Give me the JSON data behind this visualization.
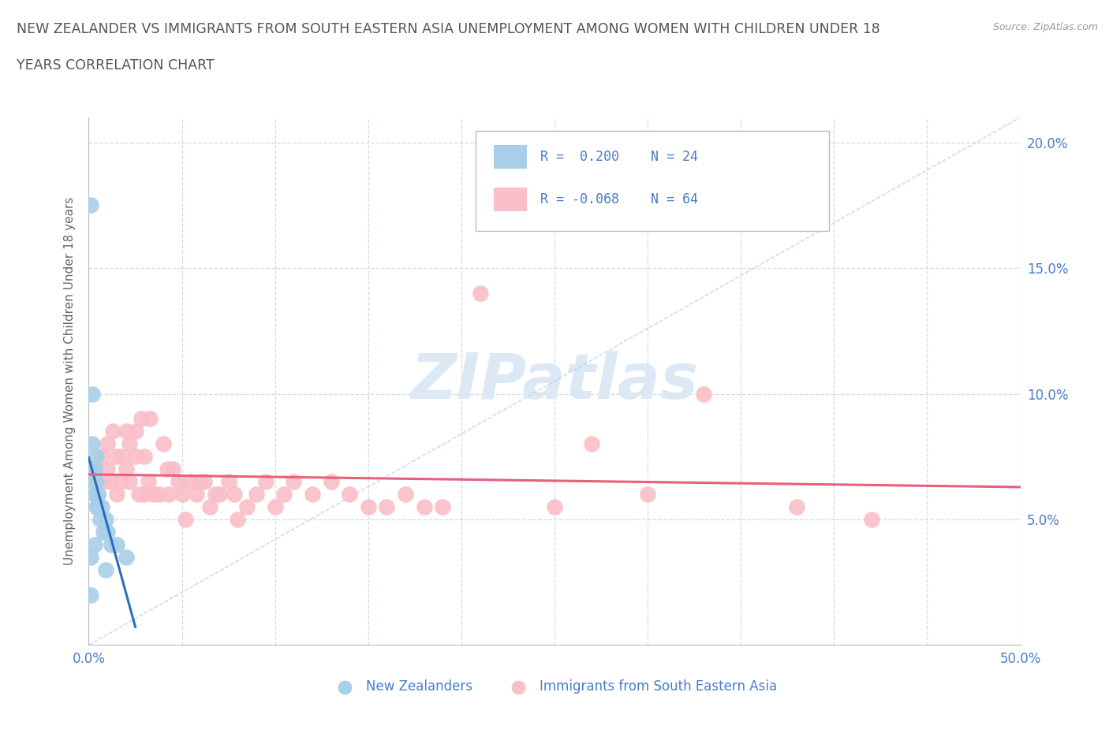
{
  "title_line1": "NEW ZEALANDER VS IMMIGRANTS FROM SOUTH EASTERN ASIA UNEMPLOYMENT AMONG WOMEN WITH CHILDREN UNDER 18",
  "title_line2": "YEARS CORRELATION CHART",
  "source": "Source: ZipAtlas.com",
  "ylabel": "Unemployment Among Women with Children Under 18 years",
  "xmin": 0.0,
  "xmax": 0.5,
  "ymin": 0.0,
  "ymax": 0.21,
  "x_ticks": [
    0.0,
    0.05,
    0.1,
    0.15,
    0.2,
    0.25,
    0.3,
    0.35,
    0.4,
    0.45,
    0.5
  ],
  "x_tick_labels": [
    "0.0%",
    "",
    "",
    "",
    "",
    "",
    "",
    "",
    "",
    "",
    "50.0%"
  ],
  "y_ticks": [
    0.05,
    0.1,
    0.15,
    0.2
  ],
  "y_tick_labels": [
    "5.0%",
    "10.0%",
    "15.0%",
    "20.0%"
  ],
  "nz_R": 0.2,
  "nz_N": 24,
  "sea_R": -0.068,
  "sea_N": 64,
  "nz_scatter_color": "#a8cfe8",
  "sea_scatter_color": "#f9bec7",
  "nz_line_color": "#2a6ebb",
  "sea_line_color": "#e8607a",
  "watermark_color": "#dde8f5",
  "background_color": "#ffffff",
  "grid_color": "#c8d8ec",
  "title_color": "#555555",
  "axis_label_color": "#666666",
  "tick_label_color": "#4a7cc9",
  "legend_text_color": "#4a7cc9",
  "nz_x": [
    0.001,
    0.001,
    0.001,
    0.002,
    0.002,
    0.002,
    0.003,
    0.003,
    0.003,
    0.003,
    0.004,
    0.004,
    0.004,
    0.005,
    0.005,
    0.006,
    0.007,
    0.008,
    0.009,
    0.009,
    0.01,
    0.012,
    0.015,
    0.02
  ],
  "nz_y": [
    0.175,
    0.035,
    0.02,
    0.1,
    0.08,
    0.07,
    0.07,
    0.065,
    0.06,
    0.04,
    0.075,
    0.065,
    0.055,
    0.06,
    0.055,
    0.05,
    0.055,
    0.045,
    0.05,
    0.03,
    0.045,
    0.04,
    0.04,
    0.035
  ],
  "sea_x": [
    0.003,
    0.005,
    0.007,
    0.008,
    0.01,
    0.01,
    0.012,
    0.013,
    0.015,
    0.015,
    0.017,
    0.018,
    0.02,
    0.02,
    0.022,
    0.022,
    0.025,
    0.025,
    0.027,
    0.028,
    0.03,
    0.03,
    0.032,
    0.033,
    0.035,
    0.038,
    0.04,
    0.042,
    0.043,
    0.045,
    0.048,
    0.05,
    0.052,
    0.055,
    0.058,
    0.06,
    0.062,
    0.065,
    0.068,
    0.07,
    0.075,
    0.078,
    0.08,
    0.085,
    0.09,
    0.095,
    0.1,
    0.105,
    0.11,
    0.12,
    0.13,
    0.14,
    0.15,
    0.16,
    0.17,
    0.18,
    0.19,
    0.21,
    0.25,
    0.27,
    0.3,
    0.33,
    0.38,
    0.42
  ],
  "sea_y": [
    0.07,
    0.06,
    0.075,
    0.065,
    0.07,
    0.08,
    0.065,
    0.085,
    0.06,
    0.075,
    0.065,
    0.075,
    0.07,
    0.085,
    0.08,
    0.065,
    0.075,
    0.085,
    0.06,
    0.09,
    0.06,
    0.075,
    0.065,
    0.09,
    0.06,
    0.06,
    0.08,
    0.07,
    0.06,
    0.07,
    0.065,
    0.06,
    0.05,
    0.065,
    0.06,
    0.065,
    0.065,
    0.055,
    0.06,
    0.06,
    0.065,
    0.06,
    0.05,
    0.055,
    0.06,
    0.065,
    0.055,
    0.06,
    0.065,
    0.06,
    0.065,
    0.06,
    0.055,
    0.055,
    0.06,
    0.055,
    0.055,
    0.14,
    0.055,
    0.08,
    0.06,
    0.1,
    0.055,
    0.05
  ]
}
